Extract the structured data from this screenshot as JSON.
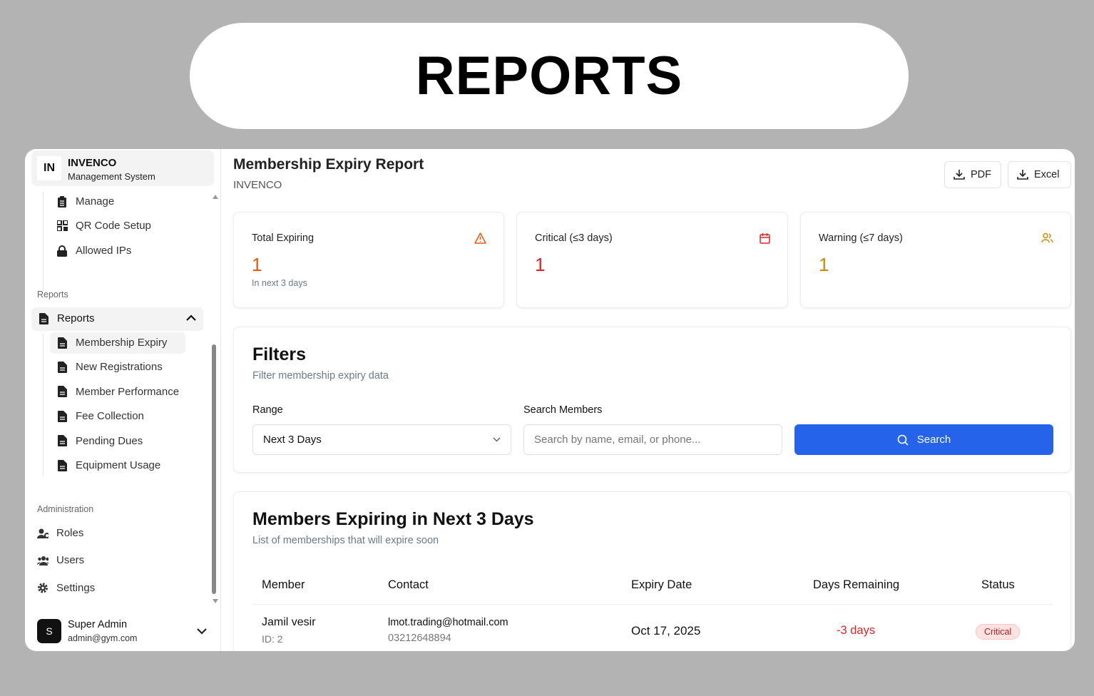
{
  "banner": {
    "title": "REPORTS"
  },
  "sidebar": {
    "brand": {
      "logo": "IN",
      "name": "INVENCO",
      "subtitle": "Management System"
    },
    "top_items": [
      {
        "label": "Manage",
        "icon": "clipboard-icon"
      },
      {
        "label": "QR Code Setup",
        "icon": "qr-code-icon"
      },
      {
        "label": "Allowed IPs",
        "icon": "lock-icon"
      }
    ],
    "reports_section": "Reports",
    "reports_group": "Reports",
    "reports_items": [
      {
        "label": "Membership Expiry",
        "active": true
      },
      {
        "label": "New Registrations"
      },
      {
        "label": "Member Performance"
      },
      {
        "label": "Fee Collection"
      },
      {
        "label": "Pending Dues"
      },
      {
        "label": "Equipment Usage"
      }
    ],
    "admin_section": "Administration",
    "admin_items": [
      {
        "label": "Roles",
        "icon": "user-cog-icon"
      },
      {
        "label": "Users",
        "icon": "users-icon"
      },
      {
        "label": "Settings",
        "icon": "gear-icon"
      }
    ],
    "user": {
      "initial": "S",
      "name": "Super Admin",
      "email": "admin@gym.com"
    }
  },
  "header": {
    "title": "Membership Expiry Report",
    "subtitle": "INVENCO",
    "pdf": "PDF",
    "excel": "Excel"
  },
  "stats": [
    {
      "label": "Total Expiring",
      "value": "1",
      "sub": "In next 3 days",
      "color": "#ea580c",
      "icon": "alert-triangle-icon"
    },
    {
      "label": "Critical (≤3 days)",
      "value": "1",
      "color": "#dc2626",
      "icon": "calendar-icon"
    },
    {
      "label": "Warning (≤7 days)",
      "value": "1",
      "color": "#ca8a04",
      "icon": "users-icon"
    }
  ],
  "filters": {
    "title": "Filters",
    "subtitle": "Filter membership expiry data",
    "range_label": "Range",
    "range_value": "Next 3 Days",
    "search_label": "Search Members",
    "search_placeholder": "Search by name, email, or phone...",
    "search_button": "Search",
    "accent": "#2563eb"
  },
  "table": {
    "title": "Members Expiring in Next 3 Days",
    "subtitle": "List of memberships that will expire soon",
    "columns": [
      "Member",
      "Contact",
      "Expiry Date",
      "Days Remaining",
      "Status"
    ],
    "rows": [
      {
        "name": "Jamil vesir",
        "id": "ID: 2",
        "email": "lmot.trading@hotmail.com",
        "phone": "03212648894",
        "expiry": "Oct 17, 2025",
        "days": "-3 days",
        "status": "Critical"
      }
    ]
  }
}
